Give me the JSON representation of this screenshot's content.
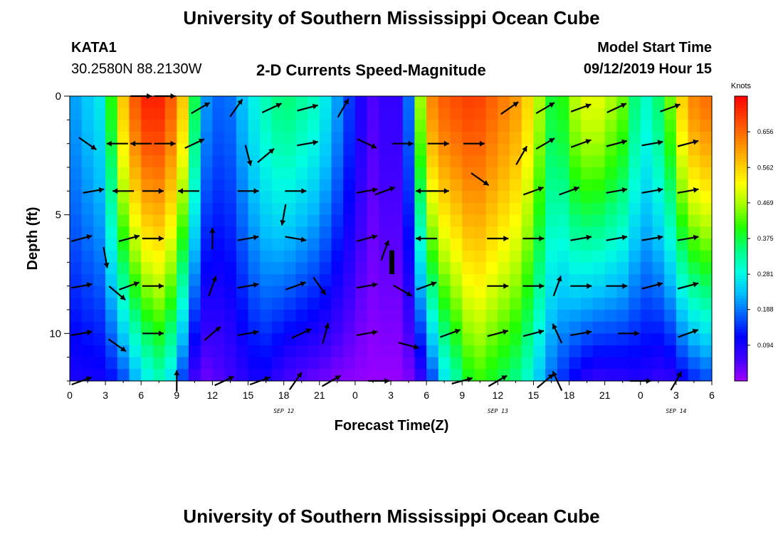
{
  "header": {
    "title": "University of Southern Mississippi Ocean Cube",
    "station_id": "KATA1",
    "station_coords": "30.2580N 88.2130W",
    "plot_title": "2-D Currents Speed-Magnitude",
    "model_start_label": "Model Start Time",
    "model_start_value": "09/12/2019 Hour 15"
  },
  "footer": {
    "title": "University of Southern Mississippi Ocean Cube"
  },
  "chart_data": {
    "type": "heatmap",
    "title": "2-D Currents Speed-Magnitude",
    "xlabel": "Forecast Time(Z)",
    "ylabel": "Depth (ft)",
    "x_tick_labels": [
      "0",
      "3",
      "6",
      "9",
      "12",
      "15",
      "18",
      "21",
      "0",
      "3",
      "6",
      "9",
      "12",
      "15",
      "18",
      "21",
      "0",
      "3",
      "6"
    ],
    "date_labels": [
      {
        "label": "SEP 12",
        "at_tick": 6
      },
      {
        "label": "SEP 13",
        "at_tick": 12
      },
      {
        "label": "SEP 14",
        "at_tick": 17
      }
    ],
    "y_tick_labels": [
      "0",
      "5",
      "10"
    ],
    "y_ticks": [
      0,
      5,
      10
    ],
    "ylim": [
      0,
      12
    ],
    "y_inverted": true,
    "colorbar": {
      "label": "Knots",
      "ticks": [
        "0.656",
        "0.562",
        "0.469",
        "0.375",
        "0.281",
        "0.188",
        "0.094"
      ],
      "tick_values": [
        0.656,
        0.562,
        0.469,
        0.375,
        0.281,
        0.188,
        0.094
      ],
      "range": [
        0,
        0.75
      ],
      "colormap": [
        "#a000ff",
        "#4000ff",
        "#0000ff",
        "#0060ff",
        "#00c0ff",
        "#00ffe0",
        "#00ff80",
        "#20ff00",
        "#a0ff00",
        "#ffff00",
        "#ffc000",
        "#ff8000",
        "#ff4000",
        "#ff0000"
      ]
    },
    "depth_levels": [
      0,
      2,
      4,
      6,
      8,
      10,
      12
    ],
    "time_columns": 54,
    "speed_profile": {
      "x": [
        0,
        3,
        4,
        6,
        8,
        10,
        11,
        13,
        16,
        18,
        21,
        23,
        25,
        26,
        27,
        28,
        30,
        31,
        34,
        38,
        41,
        42,
        44,
        47,
        48,
        50,
        52,
        54
      ],
      "surface": [
        0.2,
        0.28,
        0.52,
        0.72,
        0.72,
        0.52,
        0.22,
        0.16,
        0.3,
        0.36,
        0.3,
        0.18,
        0.06,
        0.04,
        0.1,
        0.04,
        0.6,
        0.66,
        0.7,
        0.6,
        0.34,
        0.46,
        0.52,
        0.42,
        0.28,
        0.38,
        0.62,
        0.66
      ],
      "bottom_factor": [
        0.45,
        0.35,
        0.25,
        0.35,
        0.45,
        0.2,
        0.1,
        0.3,
        0.35,
        0.15,
        0.1,
        0.08,
        0.1,
        0.12,
        0.05,
        0.1,
        0.15,
        0.35,
        0.6,
        0.55,
        0.45,
        0.25,
        0.12,
        0.18,
        0.3,
        0.15,
        0.2,
        0.25
      ]
    },
    "arrows": [
      {
        "x": 1,
        "depth": 10,
        "angle": -10
      },
      {
        "x": 1,
        "depth": 12,
        "angle": -20
      },
      {
        "x": 1,
        "depth": 6,
        "angle": -15
      },
      {
        "x": 1,
        "depth": 8,
        "angle": -10
      },
      {
        "x": 1.5,
        "depth": 2,
        "angle": 35
      },
      {
        "x": 2,
        "depth": 4,
        "angle": -10
      },
      {
        "x": 3,
        "depth": 6.8,
        "angle": 80
      },
      {
        "x": 4,
        "depth": 8.3,
        "angle": 40
      },
      {
        "x": 4,
        "depth": 10.5,
        "angle": 35
      },
      {
        "x": 4,
        "depth": 2,
        "angle": 180
      },
      {
        "x": 4.5,
        "depth": 4,
        "angle": 180
      },
      {
        "x": 5,
        "depth": 6,
        "angle": -15
      },
      {
        "x": 5,
        "depth": 8,
        "angle": -20
      },
      {
        "x": 6,
        "depth": 0,
        "angle": 0
      },
      {
        "x": 6,
        "depth": 2,
        "angle": 180
      },
      {
        "x": 7,
        "depth": 4,
        "angle": 0
      },
      {
        "x": 7,
        "depth": 6,
        "angle": 0
      },
      {
        "x": 7,
        "depth": 8,
        "angle": 0
      },
      {
        "x": 7,
        "depth": 10,
        "angle": 0
      },
      {
        "x": 8,
        "depth": 0,
        "angle": 0
      },
      {
        "x": 8,
        "depth": 2,
        "angle": 0
      },
      {
        "x": 9,
        "depth": 12,
        "angle": -90
      },
      {
        "x": 10,
        "depth": 4,
        "angle": 180
      },
      {
        "x": 10.5,
        "depth": 2,
        "angle": -25
      },
      {
        "x": 11,
        "depth": 0.5,
        "angle": -30
      },
      {
        "x": 12,
        "depth": 6,
        "angle": -90
      },
      {
        "x": 12,
        "depth": 8,
        "angle": -70
      },
      {
        "x": 12,
        "depth": 10,
        "angle": -40
      },
      {
        "x": 13,
        "depth": 12,
        "angle": -25
      },
      {
        "x": 14,
        "depth": 0.5,
        "angle": -55
      },
      {
        "x": 15,
        "depth": 2.5,
        "angle": 75
      },
      {
        "x": 15,
        "depth": 4,
        "angle": 0
      },
      {
        "x": 15,
        "depth": 6,
        "angle": -10
      },
      {
        "x": 15,
        "depth": 8,
        "angle": -10
      },
      {
        "x": 15,
        "depth": 10,
        "angle": -10
      },
      {
        "x": 16,
        "depth": 12,
        "angle": -20
      },
      {
        "x": 16.5,
        "depth": 2.5,
        "angle": -40
      },
      {
        "x": 17,
        "depth": 0.5,
        "angle": -25
      },
      {
        "x": 18,
        "depth": 5,
        "angle": 100
      },
      {
        "x": 19,
        "depth": 4,
        "angle": 0
      },
      {
        "x": 19,
        "depth": 6,
        "angle": 10
      },
      {
        "x": 19,
        "depth": 8,
        "angle": -20
      },
      {
        "x": 19.5,
        "depth": 10,
        "angle": -25
      },
      {
        "x": 19,
        "depth": 12,
        "angle": -55
      },
      {
        "x": 20,
        "depth": 2,
        "angle": -10
      },
      {
        "x": 20,
        "depth": 0.5,
        "angle": -15
      },
      {
        "x": 21,
        "depth": 8,
        "angle": 55
      },
      {
        "x": 21.5,
        "depth": 10,
        "angle": -75
      },
      {
        "x": 22,
        "depth": 12,
        "angle": -30
      },
      {
        "x": 23,
        "depth": 0.5,
        "angle": -60
      },
      {
        "x": 25,
        "depth": 2,
        "angle": 25
      },
      {
        "x": 25,
        "depth": 4,
        "angle": -10
      },
      {
        "x": 25,
        "depth": 6,
        "angle": -15
      },
      {
        "x": 25,
        "depth": 8,
        "angle": -10
      },
      {
        "x": 25,
        "depth": 10,
        "angle": -10
      },
      {
        "x": 26,
        "depth": 12,
        "angle": 0
      },
      {
        "x": 26.5,
        "depth": 4,
        "angle": -20
      },
      {
        "x": 26.5,
        "depth": 6.5,
        "angle": -70
      },
      {
        "x": 28,
        "depth": 2,
        "angle": 0
      },
      {
        "x": 28,
        "depth": 8.2,
        "angle": 30
      },
      {
        "x": 28.5,
        "depth": 10.5,
        "angle": 15
      },
      {
        "x": 30,
        "depth": 4,
        "angle": 180
      },
      {
        "x": 30,
        "depth": 6,
        "angle": 180
      },
      {
        "x": 30,
        "depth": 8,
        "angle": -20
      },
      {
        "x": 31,
        "depth": 2,
        "angle": 0
      },
      {
        "x": 31,
        "depth": 4,
        "angle": 0
      },
      {
        "x": 32,
        "depth": 10,
        "angle": -20
      },
      {
        "x": 33,
        "depth": 12,
        "angle": -15
      },
      {
        "x": 34,
        "depth": 2,
        "angle": 0
      },
      {
        "x": 34.5,
        "depth": 3.5,
        "angle": 35
      },
      {
        "x": 36,
        "depth": 6,
        "angle": 0
      },
      {
        "x": 36,
        "depth": 8,
        "angle": 0
      },
      {
        "x": 36,
        "depth": 10,
        "angle": -15
      },
      {
        "x": 36,
        "depth": 12,
        "angle": -30
      },
      {
        "x": 37,
        "depth": 0.5,
        "angle": -35
      },
      {
        "x": 38,
        "depth": 2.5,
        "angle": -60
      },
      {
        "x": 39,
        "depth": 4,
        "angle": -20
      },
      {
        "x": 39,
        "depth": 6,
        "angle": 0
      },
      {
        "x": 39,
        "depth": 8,
        "angle": 0
      },
      {
        "x": 39,
        "depth": 10,
        "angle": -15
      },
      {
        "x": 40,
        "depth": 12,
        "angle": -40
      },
      {
        "x": 40,
        "depth": 2,
        "angle": -30
      },
      {
        "x": 40,
        "depth": 0.5,
        "angle": -30
      },
      {
        "x": 41,
        "depth": 8,
        "angle": -70
      },
      {
        "x": 41,
        "depth": 10,
        "angle": -115
      },
      {
        "x": 41,
        "depth": 12,
        "angle": -115
      },
      {
        "x": 42,
        "depth": 4,
        "angle": -20
      },
      {
        "x": 43,
        "depth": 2,
        "angle": -20
      },
      {
        "x": 43,
        "depth": 6,
        "angle": -10
      },
      {
        "x": 43,
        "depth": 8,
        "angle": 0
      },
      {
        "x": 43,
        "depth": 10,
        "angle": -10
      },
      {
        "x": 43,
        "depth": 0.5,
        "angle": -20
      },
      {
        "x": 46,
        "depth": 2,
        "angle": -15
      },
      {
        "x": 46,
        "depth": 4,
        "angle": -10
      },
      {
        "x": 46,
        "depth": 6,
        "angle": -10
      },
      {
        "x": 46,
        "depth": 8,
        "angle": 0
      },
      {
        "x": 46,
        "depth": 0.5,
        "angle": -25
      },
      {
        "x": 47,
        "depth": 10,
        "angle": 0
      },
      {
        "x": 48,
        "depth": 12,
        "angle": 0
      },
      {
        "x": 49,
        "depth": 2,
        "angle": -10
      },
      {
        "x": 49,
        "depth": 4,
        "angle": -10
      },
      {
        "x": 49,
        "depth": 6,
        "angle": -10
      },
      {
        "x": 49,
        "depth": 8,
        "angle": -15
      },
      {
        "x": 50.5,
        "depth": 0.5,
        "angle": -20
      },
      {
        "x": 51,
        "depth": 12,
        "angle": -60
      },
      {
        "x": 52,
        "depth": 2,
        "angle": -15
      },
      {
        "x": 52,
        "depth": 4,
        "angle": -10
      },
      {
        "x": 52,
        "depth": 6,
        "angle": -10
      },
      {
        "x": 52,
        "depth": 8,
        "angle": -15
      },
      {
        "x": 52,
        "depth": 10,
        "angle": -20
      }
    ]
  }
}
